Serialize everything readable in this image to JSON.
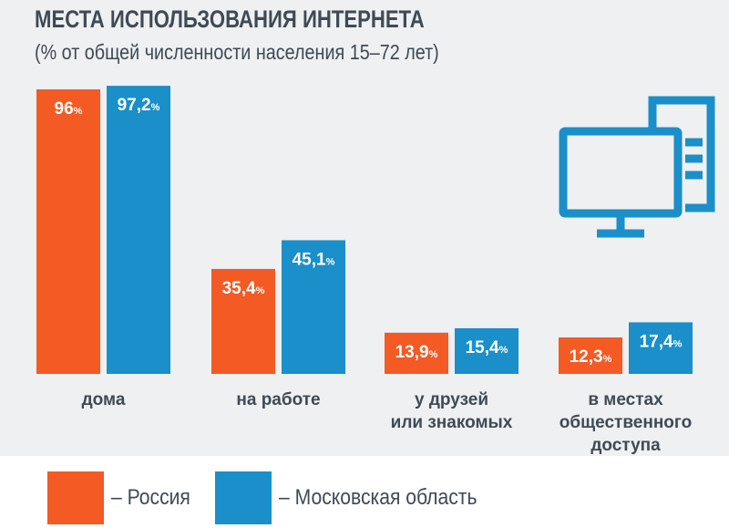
{
  "title": "МЕСТА ИСПОЛЬЗОВАНИЯ ИНТЕРНЕТА",
  "subtitle": "(% от общей численности населения 15–72 лет)",
  "colors": {
    "russia": "#f35a24",
    "moscow_region": "#1a8fc9",
    "icon": "#1a8fc9",
    "background": "#eef0f1",
    "text": "#3f4a54"
  },
  "icon": "computer-monitor-icon",
  "legend": [
    {
      "label": "– Россия",
      "color": "#f35a24"
    },
    {
      "label": "– Московская область",
      "color": "#1a8fc9"
    }
  ],
  "chart_data": {
    "type": "bar",
    "categories": [
      [
        "дома"
      ],
      [
        "на работе"
      ],
      [
        "у друзей",
        "или знакомых"
      ],
      [
        "в местах",
        "общественного",
        "доступа"
      ]
    ],
    "series": [
      {
        "name": "Россия",
        "values": [
          96,
          35.4,
          13.9,
          12.3
        ],
        "labels": [
          "96",
          "35,4",
          "13,9",
          "12,3"
        ]
      },
      {
        "name": "Московская область",
        "values": [
          97.2,
          45.1,
          15.4,
          17.4
        ],
        "labels": [
          "97,2",
          "45,1",
          "15,4",
          "17,4"
        ]
      }
    ],
    "unit": "%",
    "ylim": [
      0,
      100
    ],
    "grid": false,
    "legend_position": "bottom"
  }
}
